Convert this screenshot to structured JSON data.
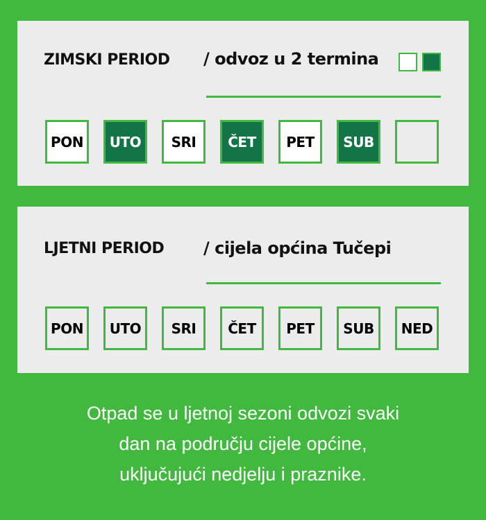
{
  "colors": {
    "background": "#41b93f",
    "active_day": "#137547",
    "panel": "#ececec"
  },
  "winter": {
    "title": "ZIMSKI PERIOD",
    "subtitle": "/ odvoz u 2 termina",
    "days": [
      {
        "label": "PON",
        "state": "white"
      },
      {
        "label": "UTO",
        "state": "dark"
      },
      {
        "label": "SRI",
        "state": "white"
      },
      {
        "label": "ČET",
        "state": "dark"
      },
      {
        "label": "PET",
        "state": "white"
      },
      {
        "label": "SUB",
        "state": "dark"
      },
      {
        "label": "",
        "state": "empty"
      }
    ]
  },
  "summer": {
    "title": "LJETNI PERIOD",
    "subtitle": "/ cijela općina Tučepi",
    "days": [
      "PON",
      "UTO",
      "SRI",
      "ČET",
      "PET",
      "SUB",
      "NED"
    ]
  },
  "footer": {
    "lines": [
      "Otpad se u ljetnoj sezoni odvozi svaki",
      "dan na području cijele općine,",
      "uključujući nedjelju i praznike."
    ]
  }
}
